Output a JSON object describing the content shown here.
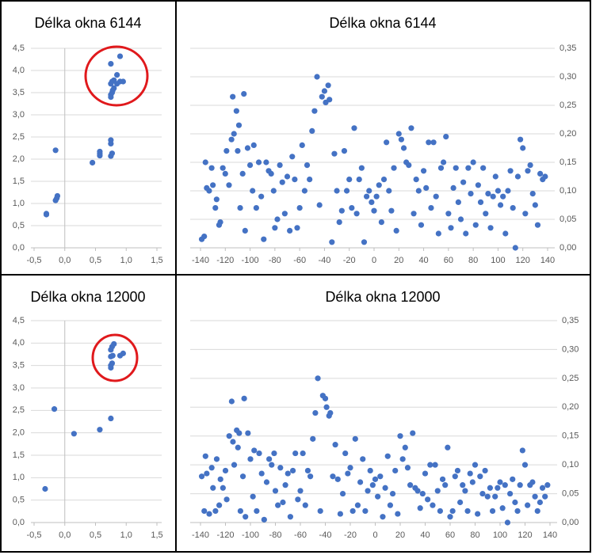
{
  "chart_data": [
    {
      "type": "scatter",
      "title": "Délka okna 6144",
      "color": "#4472c4",
      "grid": true,
      "yaxis_side": "left",
      "x": [
        -0.3,
        -0.3,
        -0.15,
        -0.13,
        -0.12,
        -0.15,
        0.45,
        0.57,
        0.57,
        0.57,
        0.75,
        0.77,
        0.75,
        0.75,
        0.75,
        0.75,
        0.77,
        0.78,
        0.75,
        0.77,
        0.8,
        0.85,
        0.9,
        0.95,
        0.85,
        0.75,
        0.9,
        0.8
      ],
      "values": [
        0.75,
        0.77,
        1.07,
        1.12,
        1.17,
        2.2,
        1.92,
        2.08,
        2.12,
        2.17,
        2.07,
        2.13,
        2.35,
        2.43,
        3.4,
        3.45,
        3.5,
        3.55,
        3.7,
        3.75,
        3.6,
        3.7,
        3.75,
        3.75,
        3.9,
        4.15,
        4.32,
        3.78
      ],
      "xlim": [
        -0.5,
        1.5
      ],
      "xticks": [
        {
          "value": -0.5,
          "label": "-0,5"
        },
        {
          "value": 0,
          "label": "0,0"
        },
        {
          "value": 0.5,
          "label": "0,5"
        },
        {
          "value": 1,
          "label": "1,0"
        },
        {
          "value": 1.5,
          "label": "1,5"
        }
      ],
      "ylim": [
        0,
        4.5
      ],
      "yticks": [
        {
          "value": 0,
          "label": "0,0"
        },
        {
          "value": 0.5,
          "label": "0,5"
        },
        {
          "value": 1,
          "label": "1,0"
        },
        {
          "value": 1.5,
          "label": "1,5"
        },
        {
          "value": 2,
          "label": "2,0"
        },
        {
          "value": 2.5,
          "label": "2,5"
        },
        {
          "value": 3,
          "label": "3,0"
        },
        {
          "value": 3.5,
          "label": "3,5"
        },
        {
          "value": 4,
          "label": "4,0"
        },
        {
          "value": 4.5,
          "label": "4,5"
        }
      ]
    },
    {
      "type": "scatter",
      "title": "Délka okna 6144",
      "color": "#4472c4",
      "grid": true,
      "yaxis_side": "right",
      "x": [
        -139,
        -137,
        -136,
        -135,
        -133,
        -131,
        -130,
        -128,
        -127,
        -125,
        -124,
        -122,
        -120,
        -119,
        -117,
        -115,
        -114,
        -113,
        -111,
        -110,
        -109,
        -108,
        -106,
        -105,
        -104,
        -102,
        -100,
        -98,
        -97,
        -95,
        -93,
        -91,
        -89,
        -87,
        -85,
        -83,
        -81,
        -80,
        -78,
        -76,
        -74,
        -72,
        -70,
        -68,
        -66,
        -64,
        -62,
        -60,
        -58,
        -56,
        -54,
        -52,
        -50,
        -48,
        -46,
        -44,
        -42,
        -40,
        -39,
        -37,
        -36,
        -34,
        -32,
        -30,
        -28,
        -26,
        -24,
        -22,
        -20,
        -18,
        -16,
        -14,
        -12,
        -10,
        -8,
        -6,
        -4,
        -2,
        0,
        2,
        4,
        6,
        8,
        10,
        12,
        14,
        16,
        18,
        20,
        22,
        24,
        26,
        28,
        30,
        32,
        34,
        36,
        38,
        40,
        42,
        44,
        46,
        48,
        50,
        52,
        54,
        56,
        58,
        60,
        62,
        64,
        66,
        68,
        70,
        72,
        74,
        76,
        78,
        80,
        82,
        84,
        86,
        88,
        90,
        92,
        94,
        96,
        98,
        100,
        102,
        104,
        106,
        108,
        110,
        112,
        114,
        116,
        118,
        120,
        122,
        124,
        126,
        128,
        130,
        132,
        134,
        136,
        138
      ],
      "values": [
        0.015,
        0.02,
        0.15,
        0.105,
        0.1,
        0.14,
        0.11,
        0.07,
        0.085,
        0.04,
        0.045,
        0.14,
        0.13,
        0.17,
        0.11,
        0.19,
        0.265,
        0.2,
        0.24,
        0.17,
        0.215,
        0.07,
        0.13,
        0.27,
        0.03,
        0.175,
        0.145,
        0.1,
        0.18,
        0.07,
        0.15,
        0.09,
        0.015,
        0.15,
        0.135,
        0.13,
        0.1,
        0.035,
        0.05,
        0.145,
        0.115,
        0.06,
        0.125,
        0.03,
        0.16,
        0.12,
        0.035,
        0.07,
        0.18,
        0.1,
        0.145,
        0.12,
        0.205,
        0.24,
        0.3,
        0.075,
        0.265,
        0.275,
        0.255,
        0.285,
        0.26,
        0.01,
        0.165,
        0.1,
        0.045,
        0.065,
        0.17,
        0.1,
        0.12,
        0.07,
        0.21,
        0.06,
        0.12,
        0.14,
        0.01,
        0.09,
        0.1,
        0.08,
        0.065,
        0.09,
        0.11,
        0.045,
        0.12,
        0.185,
        0.1,
        0.065,
        0.14,
        0.03,
        0.2,
        0.19,
        0.175,
        0.15,
        0.145,
        0.21,
        0.06,
        0.12,
        0.1,
        0.04,
        0.135,
        0.105,
        0.185,
        0.07,
        0.185,
        0.09,
        0.025,
        0.14,
        0.15,
        0.195,
        0.06,
        0.035,
        0.105,
        0.14,
        0.08,
        0.05,
        0.115,
        0.025,
        0.14,
        0.095,
        0.15,
        0.04,
        0.11,
        0.08,
        0.14,
        0.06,
        0.095,
        0.035,
        0.09,
        0.125,
        0.1,
        0.075,
        0.09,
        0.025,
        0.1,
        0.135,
        0.07,
        0,
        0.125,
        0.19,
        0.175,
        0.06,
        0.135,
        0.145,
        0.095,
        0.075,
        0.04,
        0.13,
        0.12,
        0.125
      ],
      "xlim": [
        -140,
        140
      ],
      "xticks": [
        -140,
        -120,
        -100,
        -80,
        -60,
        -40,
        -20,
        0,
        20,
        40,
        60,
        80,
        100,
        120,
        140
      ],
      "ylim": [
        0,
        0.35
      ],
      "yticks": [
        {
          "value": 0,
          "label": "0,00"
        },
        {
          "value": 0.05,
          "label": "0,05"
        },
        {
          "value": 0.1,
          "label": "0,10"
        },
        {
          "value": 0.15,
          "label": "0,15"
        },
        {
          "value": 0.2,
          "label": "0,20"
        },
        {
          "value": 0.25,
          "label": "0,25"
        },
        {
          "value": 0.3,
          "label": "0,30"
        },
        {
          "value": 0.35,
          "label": "0,35"
        }
      ]
    },
    {
      "type": "scatter",
      "title": "Délka okna 12000",
      "color": "#4472c4",
      "grid": true,
      "yaxis_side": "left",
      "x": [
        -0.32,
        -0.17,
        0.15,
        0.57,
        0.75,
        0.75,
        0.75,
        0.77,
        0.75,
        0.78,
        0.9,
        0.95,
        0.75,
        0.77,
        0.8
      ],
      "values": [
        0.75,
        2.53,
        1.98,
        2.07,
        2.32,
        3.45,
        3.5,
        3.55,
        3.7,
        3.72,
        3.72,
        3.77,
        3.85,
        3.92,
        3.98
      ],
      "xlim": [
        -0.5,
        1.5
      ],
      "xticks": [
        {
          "value": -0.5,
          "label": "-0,5"
        },
        {
          "value": 0,
          "label": "0,0"
        },
        {
          "value": 0.5,
          "label": "0,5"
        },
        {
          "value": 1,
          "label": "1,0"
        },
        {
          "value": 1.5,
          "label": "1,5"
        }
      ],
      "ylim": [
        0,
        4.5
      ],
      "yticks": [
        {
          "value": 0,
          "label": "0,0"
        },
        {
          "value": 0.5,
          "label": "0,5"
        },
        {
          "value": 1,
          "label": "1,0"
        },
        {
          "value": 1.5,
          "label": "1,5"
        },
        {
          "value": 2,
          "label": "2,0"
        },
        {
          "value": 2.5,
          "label": "2,5"
        },
        {
          "value": 3,
          "label": "3,0"
        },
        {
          "value": 3.5,
          "label": "3,5"
        },
        {
          "value": 4,
          "label": "4,0"
        },
        {
          "value": 4.5,
          "label": "4,5"
        }
      ]
    },
    {
      "type": "scatter",
      "title": "Délka okna 12000",
      "color": "#4472c4",
      "grid": true,
      "yaxis_side": "right",
      "x": [
        -139,
        -137,
        -136,
        -135,
        -133,
        -131,
        -130,
        -128,
        -127,
        -125,
        -124,
        -122,
        -120,
        -119,
        -117,
        -115,
        -114,
        -113,
        -111,
        -110,
        -109,
        -108,
        -106,
        -105,
        -104,
        -102,
        -100,
        -98,
        -97,
        -95,
        -93,
        -91,
        -89,
        -87,
        -85,
        -83,
        -81,
        -80,
        -78,
        -76,
        -74,
        -72,
        -70,
        -68,
        -66,
        -64,
        -62,
        -60,
        -58,
        -56,
        -54,
        -52,
        -50,
        -48,
        -46,
        -44,
        -42,
        -40,
        -39,
        -37,
        -36,
        -34,
        -32,
        -30,
        -28,
        -26,
        -24,
        -22,
        -20,
        -18,
        -16,
        -14,
        -12,
        -10,
        -8,
        -6,
        -4,
        -2,
        0,
        2,
        4,
        6,
        8,
        10,
        12,
        14,
        16,
        18,
        20,
        22,
        24,
        26,
        28,
        30,
        32,
        34,
        36,
        38,
        40,
        42,
        44,
        46,
        48,
        50,
        52,
        54,
        56,
        58,
        60,
        62,
        64,
        66,
        68,
        70,
        72,
        74,
        76,
        78,
        80,
        82,
        84,
        86,
        88,
        90,
        92,
        94,
        96,
        98,
        100,
        102,
        104,
        106,
        108,
        110,
        112,
        114,
        116,
        118,
        120,
        122,
        124,
        126,
        128,
        130,
        132,
        134,
        136,
        138
      ],
      "values": [
        0.08,
        0.02,
        0.115,
        0.085,
        0.015,
        0.095,
        0.06,
        0.02,
        0.11,
        0.03,
        0.075,
        0.06,
        0.09,
        0.04,
        0.15,
        0.21,
        0.14,
        0.1,
        0.16,
        0.13,
        0.155,
        0.02,
        0.08,
        0.215,
        0.01,
        0.155,
        0.11,
        0.045,
        0.125,
        0.02,
        0.12,
        0.085,
        0.005,
        0.07,
        0.11,
        0.1,
        0.12,
        0.055,
        0.03,
        0.095,
        0.035,
        0.065,
        0.085,
        0.01,
        0.09,
        0.12,
        0.04,
        0.055,
        0.12,
        0.03,
        0.09,
        0.08,
        0.145,
        0.19,
        0.25,
        0.02,
        0.22,
        0.215,
        0.2,
        0.185,
        0.19,
        0.08,
        0.135,
        0.075,
        0.015,
        0.05,
        0.12,
        0.085,
        0.095,
        0.02,
        0.145,
        0.03,
        0.07,
        0.11,
        0.02,
        0.055,
        0.09,
        0.065,
        0.075,
        0.045,
        0.08,
        0.01,
        0.06,
        0.115,
        0.03,
        0.05,
        0.09,
        0.015,
        0.15,
        0.11,
        0.13,
        0.095,
        0.065,
        0.155,
        0.06,
        0.055,
        0.025,
        0.05,
        0.085,
        0.04,
        0.1,
        0.03,
        0.1,
        0.055,
        0.02,
        0.075,
        0.065,
        0.13,
        0.01,
        0.02,
        0.08,
        0.09,
        0.035,
        0.065,
        0.055,
        0.02,
        0.085,
        0.07,
        0.1,
        0.015,
        0.08,
        0.05,
        0.09,
        0.045,
        0.06,
        0.02,
        0.045,
        0.06,
        0.07,
        0.025,
        0.065,
        0.0,
        0.05,
        0.075,
        0.035,
        0.02,
        0.065,
        0.125,
        0.1,
        0.03,
        0.065,
        0.07,
        0.045,
        0.02,
        0.035,
        0.06,
        0.045,
        0.065
      ],
      "xlim": [
        -140,
        140
      ],
      "xticks": [
        -140,
        -120,
        -100,
        -80,
        -60,
        -40,
        -20,
        0,
        20,
        40,
        60,
        80,
        100,
        120,
        140
      ],
      "ylim": [
        0,
        0.35
      ],
      "yticks": [
        {
          "value": 0,
          "label": "0,00"
        },
        {
          "value": 0.05,
          "label": "0,05"
        },
        {
          "value": 0.1,
          "label": "0,10"
        },
        {
          "value": 0.15,
          "label": "0,15"
        },
        {
          "value": 0.2,
          "label": "0,20"
        },
        {
          "value": 0.25,
          "label": "0,25"
        },
        {
          "value": 0.3,
          "label": "0,30"
        },
        {
          "value": 0.35,
          "label": "0,35"
        }
      ]
    }
  ]
}
